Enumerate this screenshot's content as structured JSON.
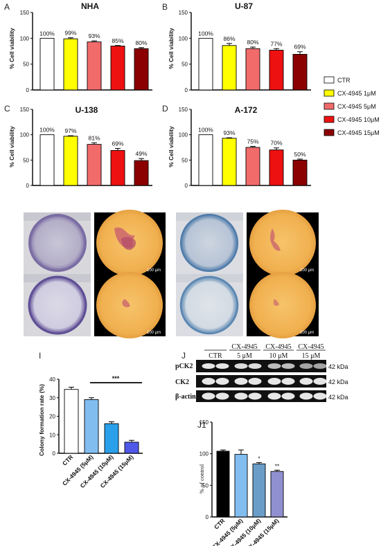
{
  "legend": [
    {
      "label": "CTR",
      "color": "#ffffff"
    },
    {
      "label": "CX-4945 1μM",
      "color": "#ffff00"
    },
    {
      "label": "CX-4945 5μM",
      "color": "#f26b6b"
    },
    {
      "label": "CX-4945 10μM",
      "color": "#ee1111"
    },
    {
      "label": "CX-4945 15μM",
      "color": "#8b0000"
    }
  ],
  "micro_scale": "100 μm",
  "western": {
    "groups": [
      "CTR",
      "CX-4945",
      "CX-4945",
      "CX-4945"
    ],
    "doses": [
      "",
      "5 μM",
      "10 μM",
      "15 μM"
    ],
    "rows": [
      "pCK2",
      "CK2",
      "β-actin"
    ],
    "kda": [
      "42 kDa",
      "42 kDa",
      "42 kDa"
    ]
  },
  "chart_data": [
    {
      "panel": "A",
      "type": "bar",
      "title": "NHA",
      "ylabel": "% Cell viability",
      "categories": [
        "CTR",
        "CX-4945 1μM",
        "CX-4945 5μM",
        "CX-4945 10μM",
        "CX-4945 15μM"
      ],
      "values": [
        100,
        99,
        93,
        85,
        80
      ],
      "errors": [
        0,
        2,
        2,
        1,
        2
      ],
      "value_labels": [
        "100%",
        "99%",
        "93%",
        "85%",
        "80%"
      ],
      "colors": [
        "#ffffff",
        "#ffff00",
        "#f26b6b",
        "#ee1111",
        "#8b0000"
      ],
      "ylim": [
        0,
        150
      ],
      "yticks": [
        0,
        50,
        100,
        150
      ]
    },
    {
      "panel": "B",
      "type": "bar",
      "title": "U-87",
      "ylabel": "% Cell viability",
      "categories": [
        "CTR",
        "CX-4945 1μM",
        "CX-4945 5μM",
        "CX-4945 10μM",
        "CX-4945 15μM"
      ],
      "values": [
        100,
        86,
        80,
        77,
        69
      ],
      "errors": [
        0,
        4,
        3,
        3,
        5
      ],
      "value_labels": [
        "100%",
        "86%",
        "80%",
        "77%",
        "69%"
      ],
      "colors": [
        "#ffffff",
        "#ffff00",
        "#f26b6b",
        "#ee1111",
        "#8b0000"
      ],
      "ylim": [
        0,
        150
      ],
      "yticks": [
        0,
        50,
        100,
        150
      ]
    },
    {
      "panel": "C",
      "type": "bar",
      "title": "U-138",
      "ylabel": "% Cell viability",
      "categories": [
        "CTR",
        "CX-4945 1μM",
        "CX-4945 5μM",
        "CX-4945 10μM",
        "CX-4945 15μM"
      ],
      "values": [
        100,
        97,
        81,
        69,
        49
      ],
      "errors": [
        0,
        1,
        3,
        4,
        4
      ],
      "value_labels": [
        "100%",
        "97%",
        "81%",
        "69%",
        "49%"
      ],
      "colors": [
        "#ffffff",
        "#ffff00",
        "#f26b6b",
        "#ee1111",
        "#8b0000"
      ],
      "ylim": [
        0,
        150
      ],
      "yticks": [
        0,
        50,
        100,
        150
      ]
    },
    {
      "panel": "D",
      "type": "bar",
      "title": "A-172",
      "ylabel": "% Cell viability",
      "categories": [
        "CTR",
        "CX-4945 1μM",
        "CX-4945 5μM",
        "CX-4945 10μM",
        "CX-4945 15μM"
      ],
      "values": [
        100,
        93,
        75,
        70,
        50
      ],
      "errors": [
        0,
        1,
        2,
        4,
        2
      ],
      "value_labels": [
        "100%",
        "93%",
        "75%",
        "70%",
        "50%"
      ],
      "colors": [
        "#ffffff",
        "#ffff00",
        "#f26b6b",
        "#ee1111",
        "#8b0000"
      ],
      "ylim": [
        0,
        150
      ],
      "yticks": [
        0,
        50,
        100,
        150
      ]
    },
    {
      "panel": "I",
      "type": "bar",
      "title": "",
      "ylabel": "Colony formation rate (%)",
      "categories": [
        "CTR",
        "CX-4945 (5μM)",
        "CX-4945 (10μM)",
        "CX-4945 (15μM)"
      ],
      "values": [
        34.5,
        29,
        16,
        6
      ],
      "errors": [
        1.2,
        1,
        1,
        1
      ],
      "colors": [
        "#ffffff",
        "#82bdf0",
        "#2aa0ea",
        "#5058e8"
      ],
      "ylim": [
        0,
        40
      ],
      "yticks": [
        0,
        10,
        20,
        30,
        40
      ],
      "annotation": "***"
    },
    {
      "panel": "J1",
      "type": "bar",
      "title": "",
      "ylabel": "% of control",
      "categories": [
        "CTR",
        "CX-4945 (5μM)",
        "CX-4945 (10μM)",
        "CX-4945 (15μM)"
      ],
      "values": [
        104,
        99,
        84,
        72
      ],
      "errors": [
        2,
        7,
        2,
        2
      ],
      "star_labels": [
        "",
        "",
        "*",
        "**"
      ],
      "colors": [
        "#000000",
        "#82bdf0",
        "#6a9ec8",
        "#9090d0"
      ],
      "ylim": [
        0,
        150
      ],
      "yticks": [
        0,
        50,
        100,
        150
      ]
    }
  ]
}
